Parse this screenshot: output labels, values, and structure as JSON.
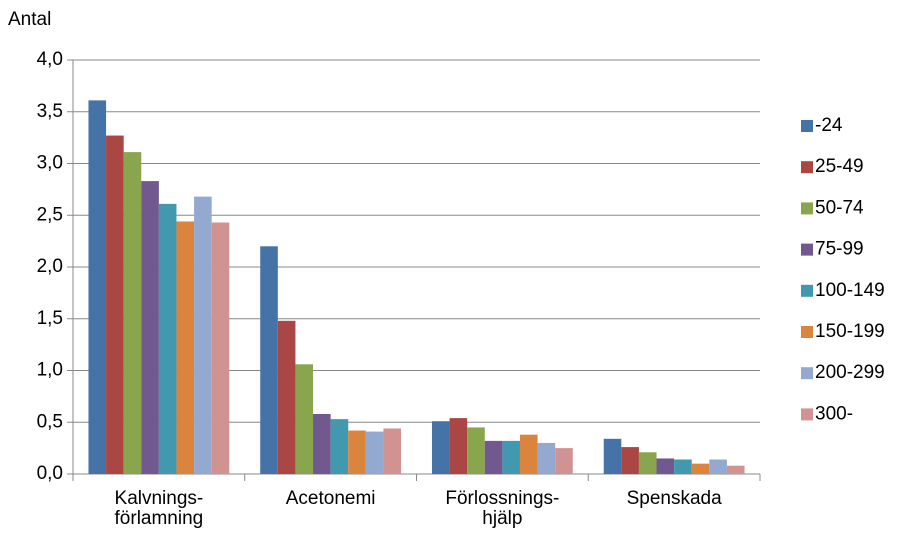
{
  "chart_data": {
    "type": "bar",
    "y_label": "Antal",
    "categories": [
      "Kalvnings-\nförlamning",
      "Acetonemi",
      "Förlossnings-\nhjälp",
      "Spenskada"
    ],
    "series": [
      {
        "name": "-24",
        "color": "#4572a7",
        "values": [
          3.61,
          2.2,
          0.51,
          0.34
        ]
      },
      {
        "name": "25-49",
        "color": "#aa4643",
        "values": [
          3.27,
          1.48,
          0.54,
          0.26
        ]
      },
      {
        "name": "50-74",
        "color": "#89a54e",
        "values": [
          3.11,
          1.06,
          0.45,
          0.21
        ]
      },
      {
        "name": "75-99",
        "color": "#71588f",
        "values": [
          2.83,
          0.58,
          0.32,
          0.15
        ]
      },
      {
        "name": "100-149",
        "color": "#4198af",
        "values": [
          2.61,
          0.53,
          0.32,
          0.14
        ]
      },
      {
        "name": "150-199",
        "color": "#db843d",
        "values": [
          2.44,
          0.42,
          0.38,
          0.1
        ]
      },
      {
        "name": "200-299",
        "color": "#93a9cf",
        "values": [
          2.68,
          0.41,
          0.3,
          0.14
        ]
      },
      {
        "name": "300-",
        "color": "#d19392",
        "values": [
          2.43,
          0.44,
          0.25,
          0.08
        ]
      }
    ],
    "ylim": [
      0,
      4
    ],
    "yticks": [
      {
        "value": 0,
        "label": "0,0"
      },
      {
        "value": 0.5,
        "label": "0,5"
      },
      {
        "value": 1,
        "label": "1,0"
      },
      {
        "value": 1.5,
        "label": "1,5"
      },
      {
        "value": 2,
        "label": "2,0"
      },
      {
        "value": 2.5,
        "label": "2,5"
      },
      {
        "value": 3,
        "label": "3,0"
      },
      {
        "value": 3.5,
        "label": "3,5"
      },
      {
        "value": 4,
        "label": "4,0"
      }
    ],
    "grid": true,
    "legend": "right"
  }
}
